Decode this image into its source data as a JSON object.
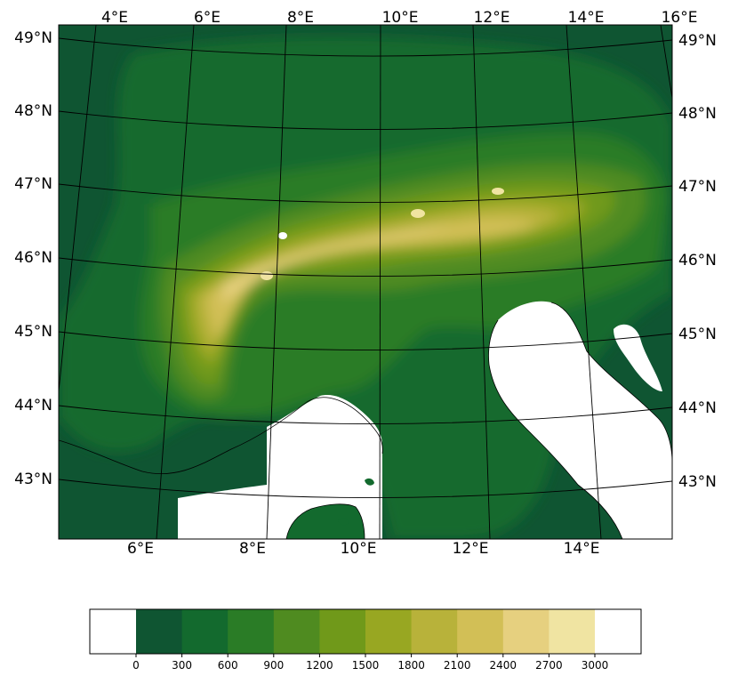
{
  "map": {
    "top_lon_labels": [
      "4°E",
      "6°E",
      "8°E",
      "10°E",
      "12°E",
      "14°E",
      "16°E"
    ],
    "bottom_lon_labels": [
      "6°E",
      "8°E",
      "10°E",
      "12°E",
      "14°E"
    ],
    "left_lat_labels": [
      "49°N",
      "48°N",
      "47°N",
      "46°N",
      "45°N",
      "44°N",
      "43°N"
    ],
    "right_lat_labels": [
      "49°N",
      "48°N",
      "47°N",
      "46°N",
      "45°N",
      "44°N",
      "43°N"
    ],
    "sea_color": "#ffffff"
  },
  "colorbar": {
    "levels": [
      "0",
      "300",
      "600",
      "900",
      "1200",
      "1500",
      "1800",
      "2100",
      "2400",
      "2700",
      "3000"
    ],
    "colors": [
      "#0f5532",
      "#136a2e",
      "#2a7c26",
      "#4f8b20",
      "#70991a",
      "#98a722",
      "#b8b23a",
      "#d2bf56",
      "#e6d07f",
      "#f0e4a2"
    ]
  }
}
